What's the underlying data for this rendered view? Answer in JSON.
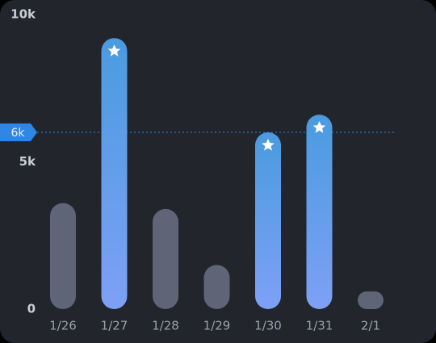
{
  "chart_data": {
    "type": "bar",
    "categories": [
      "1/26",
      "1/27",
      "1/28",
      "1/29",
      "1/30",
      "1/31",
      "2/1"
    ],
    "values": [
      3600,
      9200,
      3400,
      1500,
      6000,
      6600,
      600
    ],
    "highlighted": [
      false,
      true,
      false,
      false,
      true,
      true,
      false
    ],
    "color": "#5f6577",
    "highlight_colors": [
      "#4a9be0",
      "#7ea0f6"
    ],
    "ylim": [
      0,
      10000
    ],
    "yticks": [
      {
        "value": 0,
        "label": "0"
      },
      {
        "value": 5000,
        "label": "5k"
      },
      {
        "value": 10000,
        "label": "10k"
      }
    ],
    "goal": {
      "value": 6000,
      "label": "6k"
    },
    "goal_color": "#2f86e6"
  }
}
